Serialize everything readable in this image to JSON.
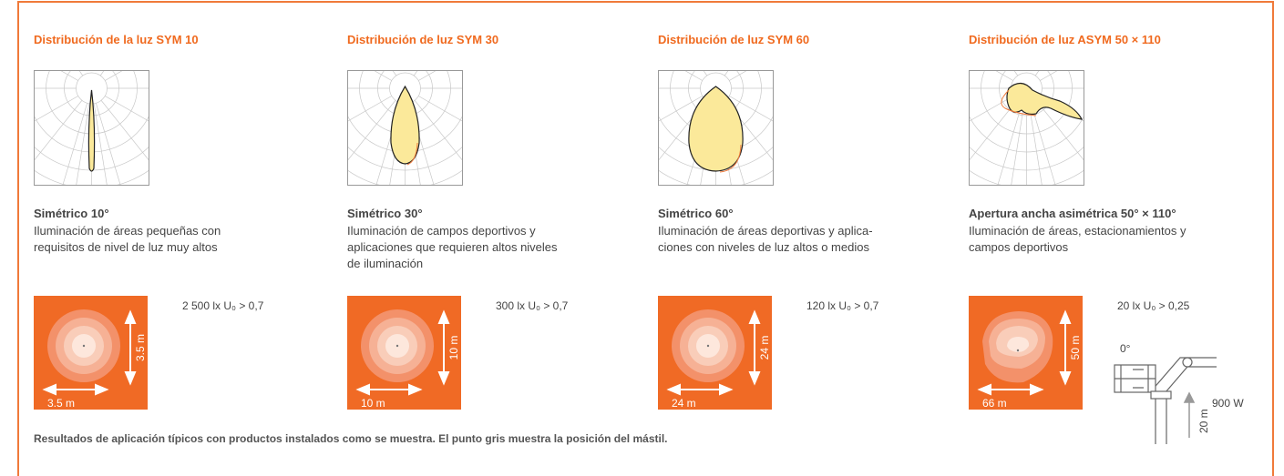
{
  "columns": [
    {
      "title": "Distribución de la luz SYM 10",
      "beam": "Simétrico 10°",
      "description": [
        "Iluminación de áreas pequeñas con",
        "requisitos de nivel de luz muy altos"
      ],
      "lux": "2 500 lx U₀ > 0,7",
      "height": "3.5 m",
      "width": "3.5 m"
    },
    {
      "title": "Distribución de luz SYM 30",
      "beam": "Simétrico 30°",
      "description": [
        "Iluminación de campos deportivos y",
        "aplicaciones que requieren altos niveles",
        "de iluminación"
      ],
      "lux": "300 lx U₀ > 0,7",
      "height": "10 m",
      "width": "10 m"
    },
    {
      "title": "Distribución de luz SYM 60",
      "beam": "Simétrico 60°",
      "description": [
        "Iluminación de áreas deportivas y aplica-",
        "ciones con niveles de luz altos o medios"
      ],
      "lux": "120 lx U₀ > 0,7",
      "height": "24 m",
      "width": "24 m"
    },
    {
      "title": "Distribución de luz ASYM 50 × 110",
      "beam": "Apertura ancha asimétrica 50° × 110°",
      "description": [
        "Iluminación de áreas, estacionamientos y",
        "campos deportivos"
      ],
      "lux": "20 lx U₀ > 0,25",
      "height": "50 m",
      "width": "66 m"
    }
  ],
  "mast": {
    "angle": "0°",
    "power": "900 W",
    "height": "20 m"
  },
  "footer": "Resultados de aplicación típicos con productos instalados como se muestra. El punto gris muestra la posición del mástil."
}
